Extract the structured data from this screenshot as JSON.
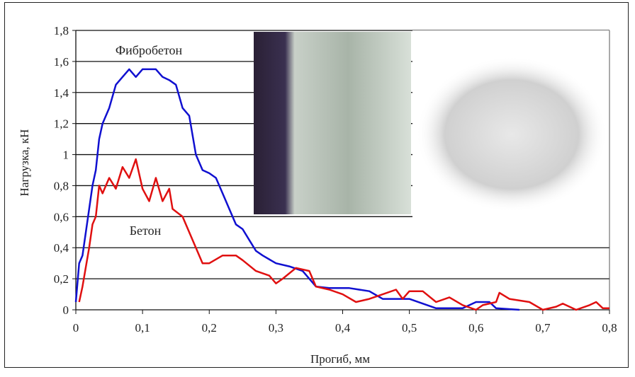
{
  "chart_data": {
    "type": "line",
    "title": "",
    "xlabel": "Прогиб, мм",
    "ylabel": "Нагрузка, кН",
    "xlim": [
      0,
      0.8
    ],
    "ylim": [
      0,
      1.8
    ],
    "xticks": [
      "0",
      "0,1",
      "0,2",
      "0,3",
      "0,4",
      "0,5",
      "0,6",
      "0,7",
      "0,8"
    ],
    "yticks": [
      "0",
      "0,2",
      "0,4",
      "0,6",
      "0,8",
      "1",
      "1,2",
      "1,4",
      "1,6",
      "1,8"
    ],
    "grid": "horizontal",
    "annotations": [
      "Фибробетон",
      "Бетон"
    ],
    "series": [
      {
        "name": "Фибробетон",
        "color": "#1010d0",
        "x": [
          0,
          0.005,
          0.01,
          0.015,
          0.02,
          0.025,
          0.03,
          0.035,
          0.04,
          0.05,
          0.06,
          0.07,
          0.08,
          0.09,
          0.1,
          0.12,
          0.13,
          0.14,
          0.15,
          0.16,
          0.17,
          0.18,
          0.19,
          0.2,
          0.21,
          0.22,
          0.23,
          0.24,
          0.25,
          0.26,
          0.27,
          0.28,
          0.3,
          0.32,
          0.34,
          0.36,
          0.38,
          0.41,
          0.44,
          0.46,
          0.5,
          0.54,
          0.58,
          0.6,
          0.62,
          0.63,
          0.665
        ],
        "y": [
          0.05,
          0.3,
          0.35,
          0.5,
          0.65,
          0.8,
          0.9,
          1.1,
          1.2,
          1.3,
          1.45,
          1.5,
          1.55,
          1.5,
          1.55,
          1.55,
          1.5,
          1.48,
          1.45,
          1.3,
          1.25,
          1.0,
          0.9,
          0.88,
          0.85,
          0.75,
          0.65,
          0.55,
          0.52,
          0.45,
          0.38,
          0.35,
          0.3,
          0.28,
          0.25,
          0.15,
          0.14,
          0.14,
          0.12,
          0.07,
          0.07,
          0.01,
          0.01,
          0.05,
          0.05,
          0.01,
          0.0
        ]
      },
      {
        "name": "Бетон",
        "color": "#e01010",
        "x": [
          0.005,
          0.01,
          0.02,
          0.025,
          0.03,
          0.035,
          0.04,
          0.05,
          0.06,
          0.07,
          0.08,
          0.09,
          0.1,
          0.11,
          0.12,
          0.13,
          0.14,
          0.145,
          0.16,
          0.18,
          0.19,
          0.2,
          0.22,
          0.24,
          0.25,
          0.27,
          0.29,
          0.3,
          0.31,
          0.33,
          0.35,
          0.36,
          0.38,
          0.4,
          0.42,
          0.44,
          0.46,
          0.48,
          0.49,
          0.5,
          0.52,
          0.54,
          0.56,
          0.58,
          0.6,
          0.61,
          0.63,
          0.635,
          0.65,
          0.68,
          0.7,
          0.72,
          0.73,
          0.75,
          0.77,
          0.78,
          0.79,
          0.8
        ],
        "y": [
          0.05,
          0.15,
          0.4,
          0.55,
          0.6,
          0.8,
          0.75,
          0.85,
          0.78,
          0.92,
          0.85,
          0.97,
          0.78,
          0.7,
          0.85,
          0.7,
          0.78,
          0.65,
          0.6,
          0.4,
          0.3,
          0.3,
          0.35,
          0.35,
          0.32,
          0.25,
          0.22,
          0.17,
          0.2,
          0.27,
          0.25,
          0.15,
          0.13,
          0.1,
          0.05,
          0.07,
          0.1,
          0.13,
          0.07,
          0.12,
          0.12,
          0.05,
          0.08,
          0.03,
          0.0,
          0.03,
          0.05,
          0.11,
          0.07,
          0.05,
          0.0,
          0.02,
          0.04,
          0.0,
          0.03,
          0.05,
          0.01,
          0.01
        ]
      }
    ]
  }
}
